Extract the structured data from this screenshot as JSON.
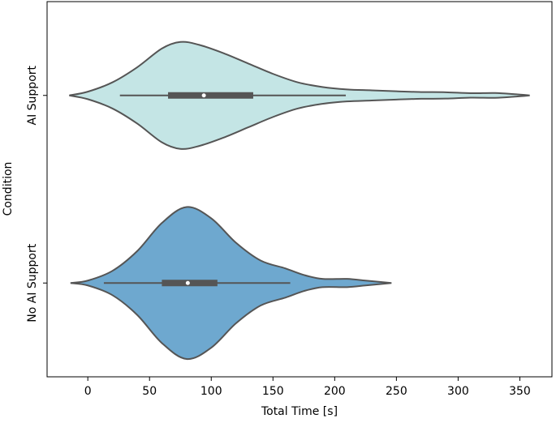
{
  "chart_data": {
    "type": "violin",
    "orientation": "horizontal",
    "x_label": "Total Time [s]",
    "y_label": "Condition",
    "xlim": [
      -33,
      376
    ],
    "xticks": [
      0,
      50,
      100,
      150,
      200,
      250,
      300,
      350
    ],
    "ylim": [
      -0.5,
      1.5
    ],
    "series": [
      {
        "name": "AI Support",
        "color": "#c4e5e5",
        "box": {
          "whisker_low": 26,
          "q1": 65,
          "median": 94,
          "q3": 134,
          "whisker_high": 209
        },
        "density": {
          "x": [
            -15,
            0,
            20,
            40,
            60,
            75,
            90,
            110,
            130,
            150,
            170,
            190,
            210,
            230,
            250,
            270,
            290,
            310,
            330,
            345,
            358
          ],
          "half_width": [
            0,
            0.02,
            0.07,
            0.15,
            0.25,
            0.285,
            0.27,
            0.225,
            0.17,
            0.115,
            0.07,
            0.045,
            0.032,
            0.027,
            0.022,
            0.018,
            0.017,
            0.012,
            0.013,
            0.007,
            0
          ]
        }
      },
      {
        "name": "No AI Support",
        "color": "#6ea8cf",
        "box": {
          "whisker_low": 13,
          "q1": 60,
          "median": 81,
          "q3": 105,
          "whisker_high": 164
        },
        "density": {
          "x": [
            -14,
            0,
            20,
            40,
            60,
            80,
            100,
            120,
            140,
            160,
            175,
            190,
            210,
            225,
            240,
            246
          ],
          "half_width": [
            0,
            0.013,
            0.065,
            0.17,
            0.32,
            0.405,
            0.345,
            0.215,
            0.12,
            0.078,
            0.043,
            0.022,
            0.022,
            0.013,
            0.004,
            0
          ]
        }
      }
    ]
  }
}
